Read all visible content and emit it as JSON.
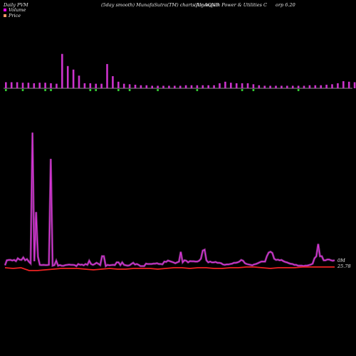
{
  "header": {
    "left": "Daily PVM",
    "center": "(5day smooth) MunafaSutra(TM) charts for AQNB",
    "right": "(Algonquin  Power & Utilities C",
    "right_tail": "orp 6.20"
  },
  "legend": [
    {
      "label": "Volume",
      "color": "#ff00ff"
    },
    {
      "label": "Price",
      "color": "#ff9966"
    }
  ],
  "colors": {
    "volume_up": "#cc33cc",
    "volume_down": "#33cc33",
    "pvm_line": "#dd33dd",
    "price_line": "#ee2222"
  },
  "chart_data": [
    {
      "type": "bar",
      "name": "Volume",
      "ylim": [
        -1,
        14
      ],
      "values": [
        1.2,
        1.2,
        1.2,
        1.1,
        1.1,
        1.0,
        1.1,
        1.1,
        1.0,
        0.9,
        6.8,
        4.4,
        3.7,
        2.5,
        1.0,
        1.0,
        0.9,
        0.9,
        4.8,
        2.4,
        1.3,
        0.9,
        0.8,
        0.7,
        0.6,
        0.6,
        0.5,
        0.5,
        0.5,
        0.5,
        0.5,
        0.5,
        0.6,
        0.6,
        0.6,
        0.6,
        0.6,
        0.6,
        1.0,
        1.3,
        1.1,
        1.0,
        1.0,
        1.0,
        0.8,
        0.6,
        0.5,
        0.5,
        0.5,
        0.5,
        0.5,
        0.5,
        0.5,
        0.5,
        0.6,
        0.6,
        0.6,
        0.7,
        0.8,
        1.0,
        1.4,
        1.3,
        1.2,
        1.1,
        1.0,
        0.9,
        0.8
      ],
      "down_days": [
        0,
        3,
        7,
        8,
        15,
        16,
        20,
        22,
        27,
        34,
        42,
        44,
        52
      ]
    },
    {
      "type": "line",
      "series": [
        {
          "values": [
            3,
            9,
            9.5,
            9.6,
            8.8,
            9.6,
            8,
            11.5,
            9.8,
            9.6,
            12.5,
            9,
            10.5,
            7.5,
            5.2,
            165,
            7.8,
            68,
            13.5,
            3.5,
            3.2,
            3.5,
            3.2,
            3.2,
            3.6,
            133,
            2.5,
            3.2,
            8.5,
            2.5,
            3.2,
            2.4,
            2.4,
            3.2,
            3.5,
            3.8,
            3.5,
            3.5,
            3.2,
            2.0,
            4.5,
            3.5,
            3.8,
            3.0,
            4.5,
            3.5,
            8.5,
            4.5,
            3.5,
            4.5,
            6.0,
            4.8,
            3.2,
            14,
            14,
            2.0,
            3.5,
            3.0,
            3.2,
            3.5,
            3.2,
            6.5,
            6.5,
            3.2,
            6.5,
            3.5,
            3.0,
            2.5,
            3.0,
            4.5,
            6.0,
            3.8,
            4.5,
            3.5,
            2.0,
            2.0,
            2.0,
            5.0,
            4.5,
            4.5,
            4.5,
            5.0,
            5.0,
            5.5,
            4.5,
            4.5,
            4.2,
            7.5,
            7.0,
            8.8,
            8.0,
            7.2,
            6.5,
            5.5,
            6.5,
            7.5,
            19.5,
            6.5,
            9.0,
            8.5,
            6.5,
            8.0,
            7.8,
            7.8,
            7.5,
            7.5,
            8.5,
            11.0,
            21.0,
            22.0,
            9.0,
            6.5,
            7.5,
            6.5,
            6.5,
            7.0,
            6.0,
            6.0,
            5.5,
            4.0,
            3.5,
            4.0,
            4.0,
            4.5,
            5.0,
            6.0,
            6.0,
            6.5,
            7.5,
            9.5,
            8.5,
            5.5,
            4.5,
            4.0,
            3.5,
            3.0,
            4.0,
            4.5,
            5.5,
            6.5,
            7.5,
            7.5,
            7.5,
            14.0,
            18.5,
            19.5,
            18.0,
            11.0,
            9.5,
            9.8,
            9.0,
            9.5,
            8.0,
            7.0,
            6.5,
            5.5,
            4.8,
            4.5,
            3.5,
            3.5,
            2.5,
            2.5,
            2.5,
            2.0,
            2.5,
            2.5,
            3.2,
            3.8,
            5.0,
            11.5,
            14.0,
            29.0,
            14.0,
            14.0,
            9.0,
            9.0,
            10.0,
            10.0,
            9.0,
            8.5,
            9.0
          ]
        },
        {
          "values": [
            1.0,
            1.0,
            1.0,
            1.2,
            1.2,
            1.2,
            1.0,
            1.0
          ]
        }
      ]
    }
  ],
  "labels": {
    "pvm_value": "0M",
    "price_value": "25.78"
  }
}
